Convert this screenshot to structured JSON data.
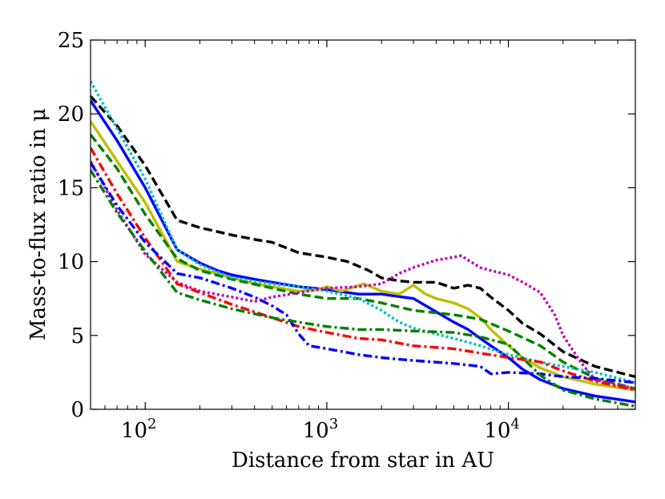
{
  "chart_data": {
    "type": "line",
    "xlabel": "Distance from star in AU",
    "ylabel": "Mass-to-flux ratio in μ",
    "xscale": "log",
    "xlim": [
      50,
      50000
    ],
    "ylim": [
      0,
      25
    ],
    "grid": false,
    "x_ticks": [
      {
        "value": 100,
        "base": "10",
        "exp": "2"
      },
      {
        "value": 1000,
        "base": "10",
        "exp": "3"
      },
      {
        "value": 10000,
        "base": "10",
        "exp": "4"
      }
    ],
    "y_ticks": [
      {
        "value": 0,
        "label": "0"
      },
      {
        "value": 5,
        "label": "5"
      },
      {
        "value": 10,
        "label": "10"
      },
      {
        "value": 15,
        "label": "15"
      },
      {
        "value": 20,
        "label": "20"
      },
      {
        "value": 25,
        "label": "25"
      }
    ],
    "series": [
      {
        "color": "#000000",
        "style": "dashed",
        "x": [
          50,
          70,
          100,
          150,
          200,
          300,
          400,
          500,
          700,
          1000,
          1300,
          1700,
          2000,
          2500,
          3000,
          4000,
          5000,
          6000,
          7000,
          8000,
          10000,
          12000,
          15000,
          20000,
          30000,
          50000
        ],
        "y": [
          21.2,
          19.2,
          16.5,
          12.8,
          12.3,
          11.8,
          11.5,
          11.3,
          10.6,
          10.3,
          10.0,
          9.4,
          8.9,
          8.7,
          8.6,
          8.6,
          8.2,
          8.4,
          8.2,
          7.6,
          6.7,
          5.8,
          5.1,
          3.9,
          2.9,
          2.2
        ]
      },
      {
        "color": "#0000ff",
        "style": "solid",
        "x": [
          50,
          70,
          100,
          150,
          200,
          250,
          300,
          400,
          500,
          700,
          1000,
          1500,
          2000,
          3000,
          4000,
          5000,
          6000,
          7000,
          8000,
          10000,
          12000,
          15000,
          20000,
          30000,
          50000
        ],
        "y": [
          20.9,
          18.2,
          15.0,
          10.8,
          9.9,
          9.4,
          9.1,
          8.8,
          8.6,
          8.3,
          8.1,
          7.8,
          7.8,
          7.5,
          6.6,
          5.9,
          5.4,
          4.8,
          4.3,
          3.5,
          2.7,
          2.0,
          1.4,
          0.9,
          0.5
        ]
      },
      {
        "color": "#bfbf00",
        "style": "solid",
        "x": [
          50,
          70,
          100,
          150,
          200,
          300,
          400,
          500,
          700,
          900,
          1000,
          1200,
          1600,
          2000,
          2500,
          3000,
          3500,
          4000,
          5000,
          6000,
          7000,
          8000,
          10000,
          12000,
          15000,
          20000,
          30000,
          50000
        ],
        "y": [
          19.5,
          16.8,
          14.0,
          10.0,
          9.5,
          8.9,
          8.5,
          8.3,
          8.0,
          8.1,
          8.3,
          8.0,
          8.5,
          8.0,
          7.8,
          8.4,
          7.8,
          7.5,
          7.2,
          6.8,
          6.2,
          5.4,
          4.3,
          3.5,
          2.8,
          2.2,
          1.7,
          1.3
        ]
      },
      {
        "color": "#007f00",
        "style": "dashed",
        "x": [
          50,
          70,
          100,
          150,
          200,
          300,
          500,
          700,
          1000,
          1500,
          2000,
          3000,
          5000,
          7000,
          10000,
          15000,
          20000,
          30000,
          50000
        ],
        "y": [
          18.6,
          16.3,
          13.2,
          10.2,
          9.4,
          8.8,
          8.2,
          7.8,
          7.5,
          7.5,
          7.2,
          6.7,
          6.4,
          6.1,
          5.3,
          4.3,
          3.2,
          2.1,
          1.4
        ]
      },
      {
        "color": "#00bfbf",
        "style": "dotted",
        "x": [
          50,
          70,
          100,
          150,
          200,
          300,
          500,
          700,
          1000,
          1500,
          2000,
          2500,
          3000,
          4000,
          5000,
          7000,
          10000,
          15000,
          20000,
          30000,
          50000
        ],
        "y": [
          22.2,
          19.0,
          15.6,
          10.8,
          9.8,
          8.9,
          8.5,
          8.3,
          8.0,
          7.5,
          6.7,
          5.9,
          5.5,
          5.1,
          4.8,
          4.3,
          3.7,
          3.2,
          2.9,
          2.5,
          1.8
        ]
      },
      {
        "color": "#bf00bf",
        "style": "dotted",
        "x": [
          50,
          70,
          100,
          150,
          200,
          300,
          400,
          500,
          700,
          1000,
          1500,
          2000,
          2500,
          3000,
          4000,
          5000,
          5500,
          6000,
          7000,
          8000,
          10000,
          12000,
          15000,
          18000,
          20000,
          25000,
          30000,
          50000
        ],
        "y": [
          16.8,
          13.5,
          10.5,
          8.6,
          8.0,
          7.6,
          7.3,
          7.6,
          7.9,
          8.2,
          8.3,
          8.5,
          9.2,
          9.6,
          10.1,
          10.3,
          10.4,
          10.1,
          9.6,
          9.4,
          9.1,
          8.6,
          7.9,
          6.4,
          5.0,
          3.2,
          2.0,
          1.4
        ]
      },
      {
        "color": "#ff0000",
        "style": "dashdot",
        "x": [
          50,
          70,
          100,
          150,
          200,
          300,
          500,
          700,
          1000,
          1500,
          2000,
          3000,
          5000,
          7000,
          10000,
          15000,
          20000,
          30000,
          50000
        ],
        "y": [
          17.7,
          14.6,
          11.6,
          8.5,
          7.9,
          7.1,
          6.2,
          5.6,
          5.2,
          4.8,
          4.7,
          4.3,
          4.1,
          3.8,
          3.5,
          3.2,
          2.6,
          1.9,
          1.3
        ]
      },
      {
        "color": "#0000ff",
        "style": "dashdot",
        "x": [
          50,
          70,
          100,
          150,
          200,
          300,
          400,
          500,
          600,
          700,
          800,
          1000,
          1500,
          2000,
          3000,
          5000,
          7000,
          8000,
          10000,
          15000,
          20000,
          30000,
          50000
        ],
        "y": [
          16.7,
          13.8,
          11.3,
          9.2,
          8.9,
          8.2,
          7.6,
          7.0,
          6.4,
          5.1,
          4.3,
          4.1,
          3.7,
          3.5,
          3.3,
          3.1,
          2.9,
          2.4,
          2.5,
          2.4,
          2.2,
          2.1,
          1.8
        ]
      },
      {
        "color": "#007f00",
        "style": "dashdot",
        "x": [
          50,
          70,
          100,
          150,
          200,
          300,
          500,
          700,
          1000,
          1500,
          2000,
          3000,
          5000,
          7000,
          10000,
          15000,
          20000,
          30000,
          50000
        ],
        "y": [
          16.2,
          13.3,
          10.7,
          7.9,
          7.4,
          6.8,
          6.2,
          5.9,
          5.6,
          5.4,
          5.4,
          5.3,
          5.2,
          4.9,
          4.4,
          2.3,
          1.3,
          0.7,
          0.2
        ]
      }
    ]
  }
}
